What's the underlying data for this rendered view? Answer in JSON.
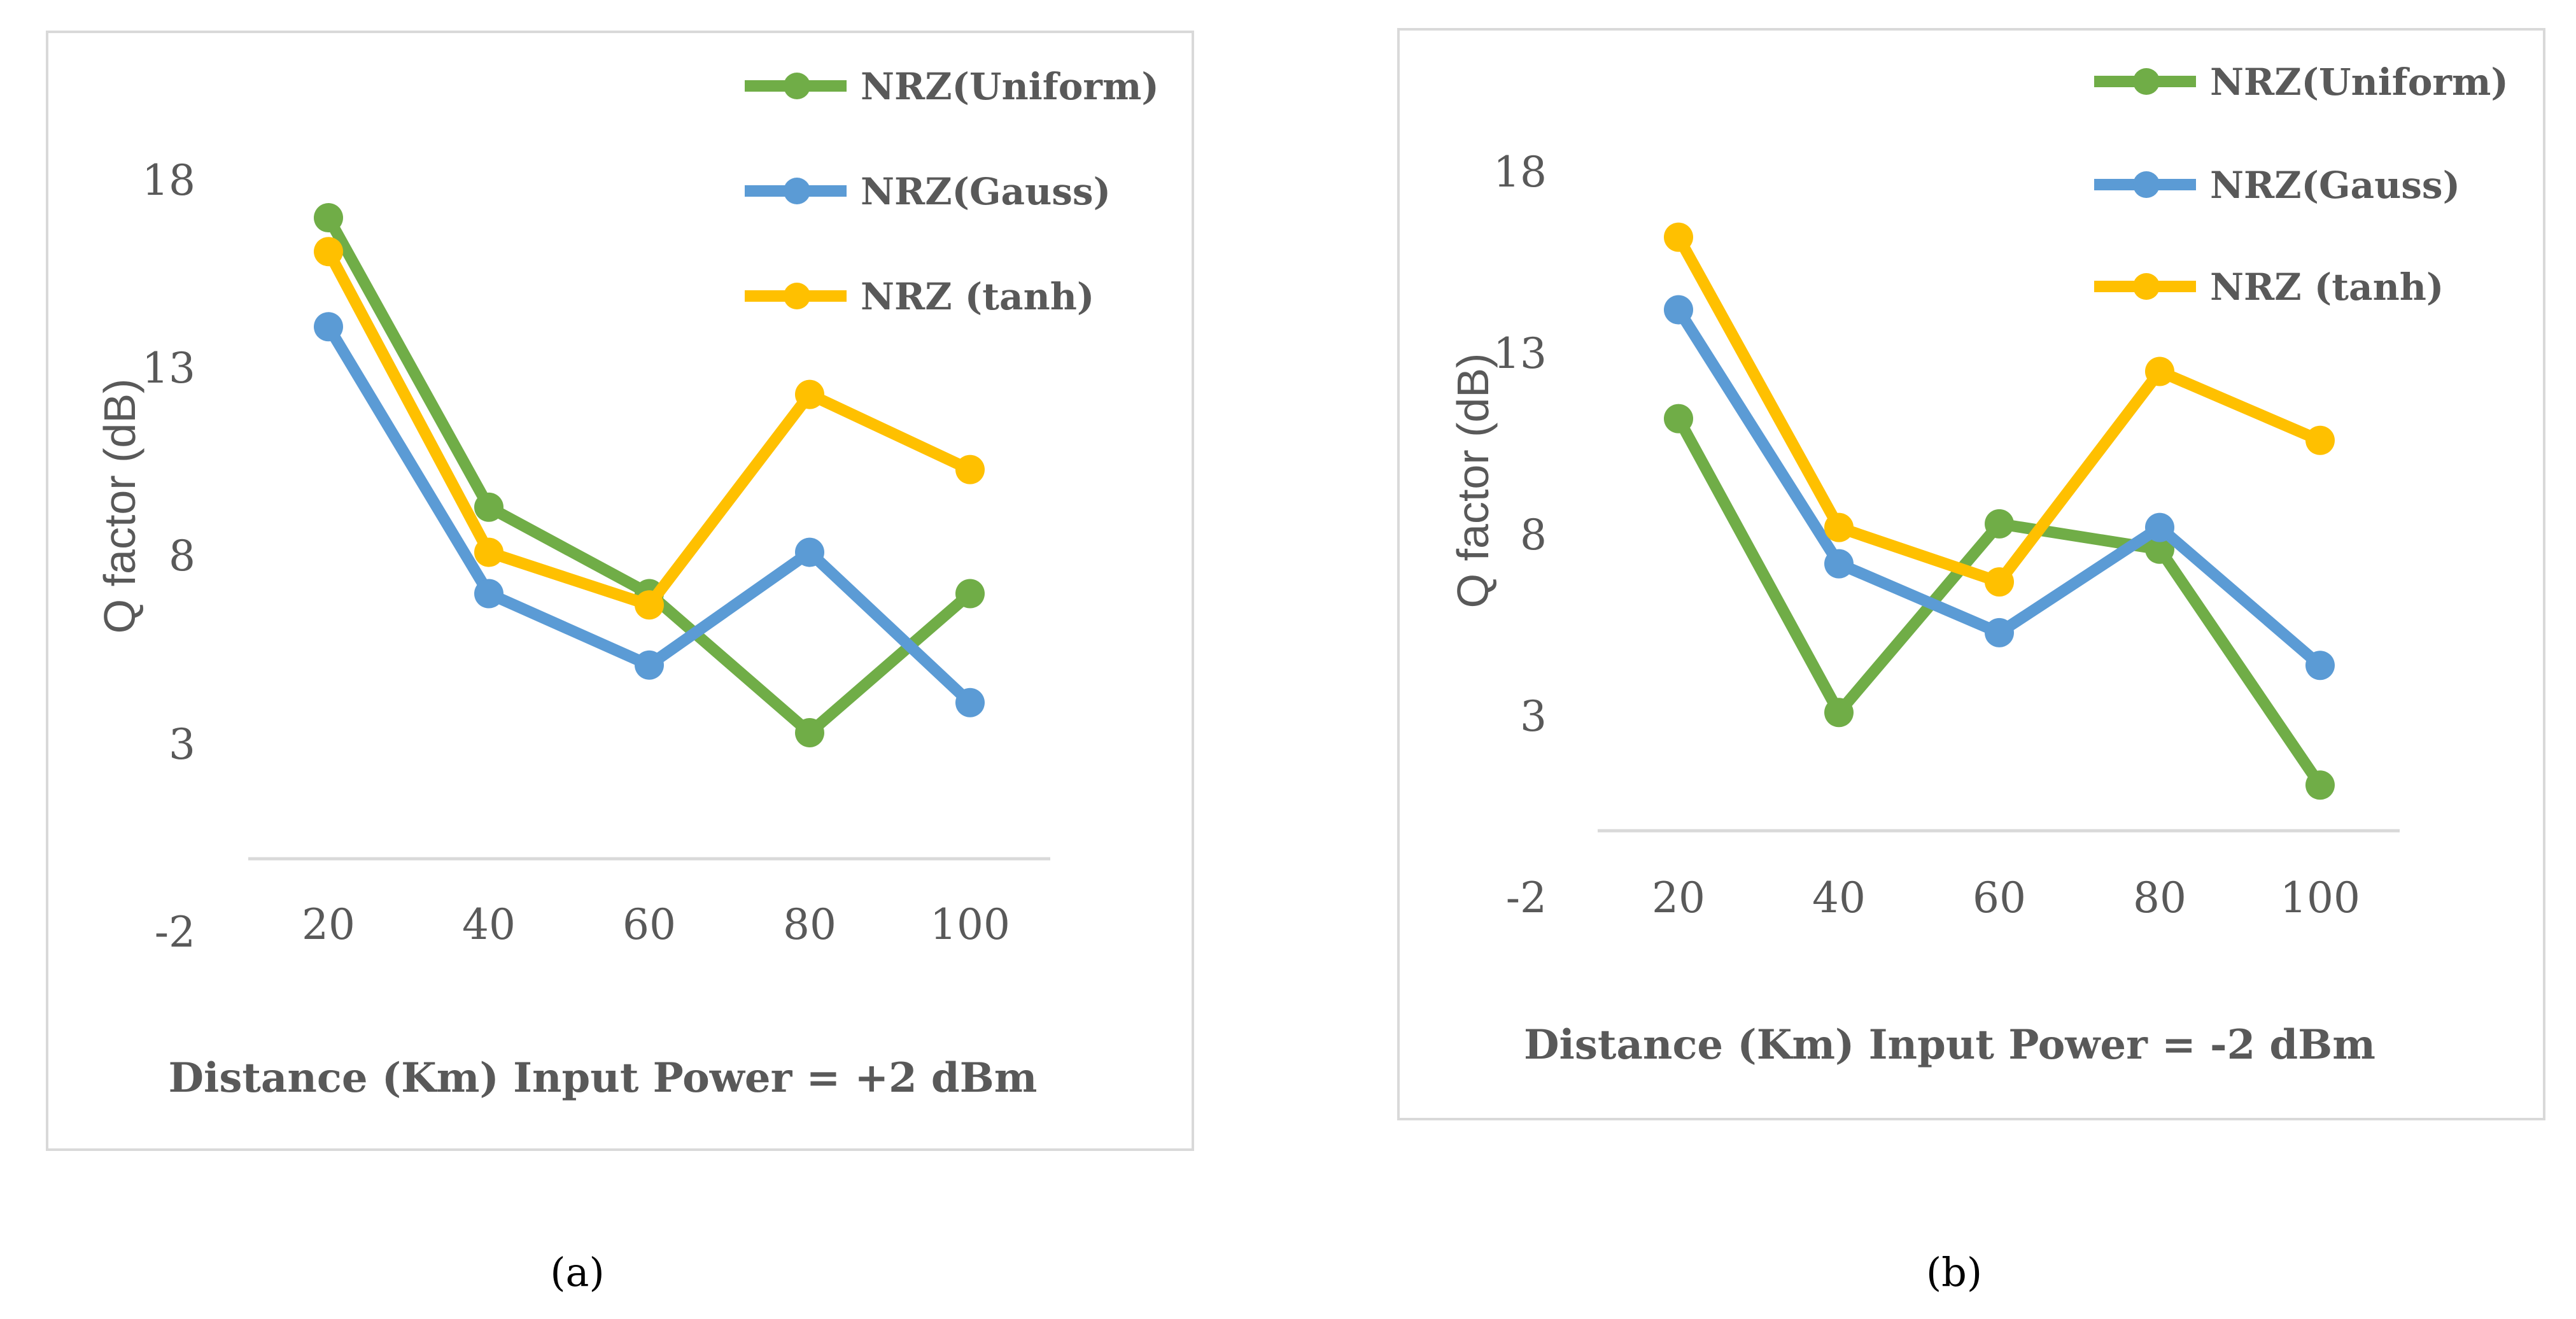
{
  "chart_data": [
    {
      "type": "line",
      "panel": "a",
      "caption": "(a)",
      "categories": [
        "20",
        "40",
        "60",
        "80",
        "100"
      ],
      "series": [
        {
          "name": "NRZ(Uniform)",
          "color": "#70ad47",
          "values": [
            17.0,
            9.3,
            7.0,
            3.3,
            7.0
          ]
        },
        {
          "name": "NRZ(Gauss)",
          "color": "#5b9bd5",
          "values": [
            14.1,
            7.0,
            5.1,
            8.1,
            4.1
          ]
        },
        {
          "name": "NRZ (tanh)",
          "color": "#ffc000",
          "values": [
            16.1,
            8.1,
            6.7,
            12.3,
            10.3
          ]
        }
      ],
      "xlabel": "Distance (Km) Input Power = +2 dBm",
      "ylabel": "Q factor (dB)",
      "yticks": [
        "18",
        "13",
        "8",
        "3",
        "-2"
      ],
      "ylim": [
        -2,
        18
      ]
    },
    {
      "type": "line",
      "panel": "b",
      "caption": "(b)",
      "categories": [
        "20",
        "40",
        "60",
        "80",
        "100"
      ],
      "series": [
        {
          "name": "NRZ(Uniform)",
          "color": "#70ad47",
          "values": [
            11.2,
            3.1,
            8.3,
            7.6,
            1.1
          ]
        },
        {
          "name": "NRZ(Gauss)",
          "color": "#5b9bd5",
          "values": [
            14.2,
            7.2,
            5.3,
            8.2,
            4.4
          ]
        },
        {
          "name": "NRZ (tanh)",
          "color": "#ffc000",
          "values": [
            16.2,
            8.2,
            6.7,
            12.5,
            10.6
          ]
        }
      ],
      "xlabel": "Distance (Km) Input Power = -2 dBm",
      "ylabel": "Q factor (dB)",
      "yticks": [
        "18",
        "13",
        "8",
        "3",
        "-2"
      ],
      "ylim": [
        -2,
        18
      ]
    }
  ]
}
